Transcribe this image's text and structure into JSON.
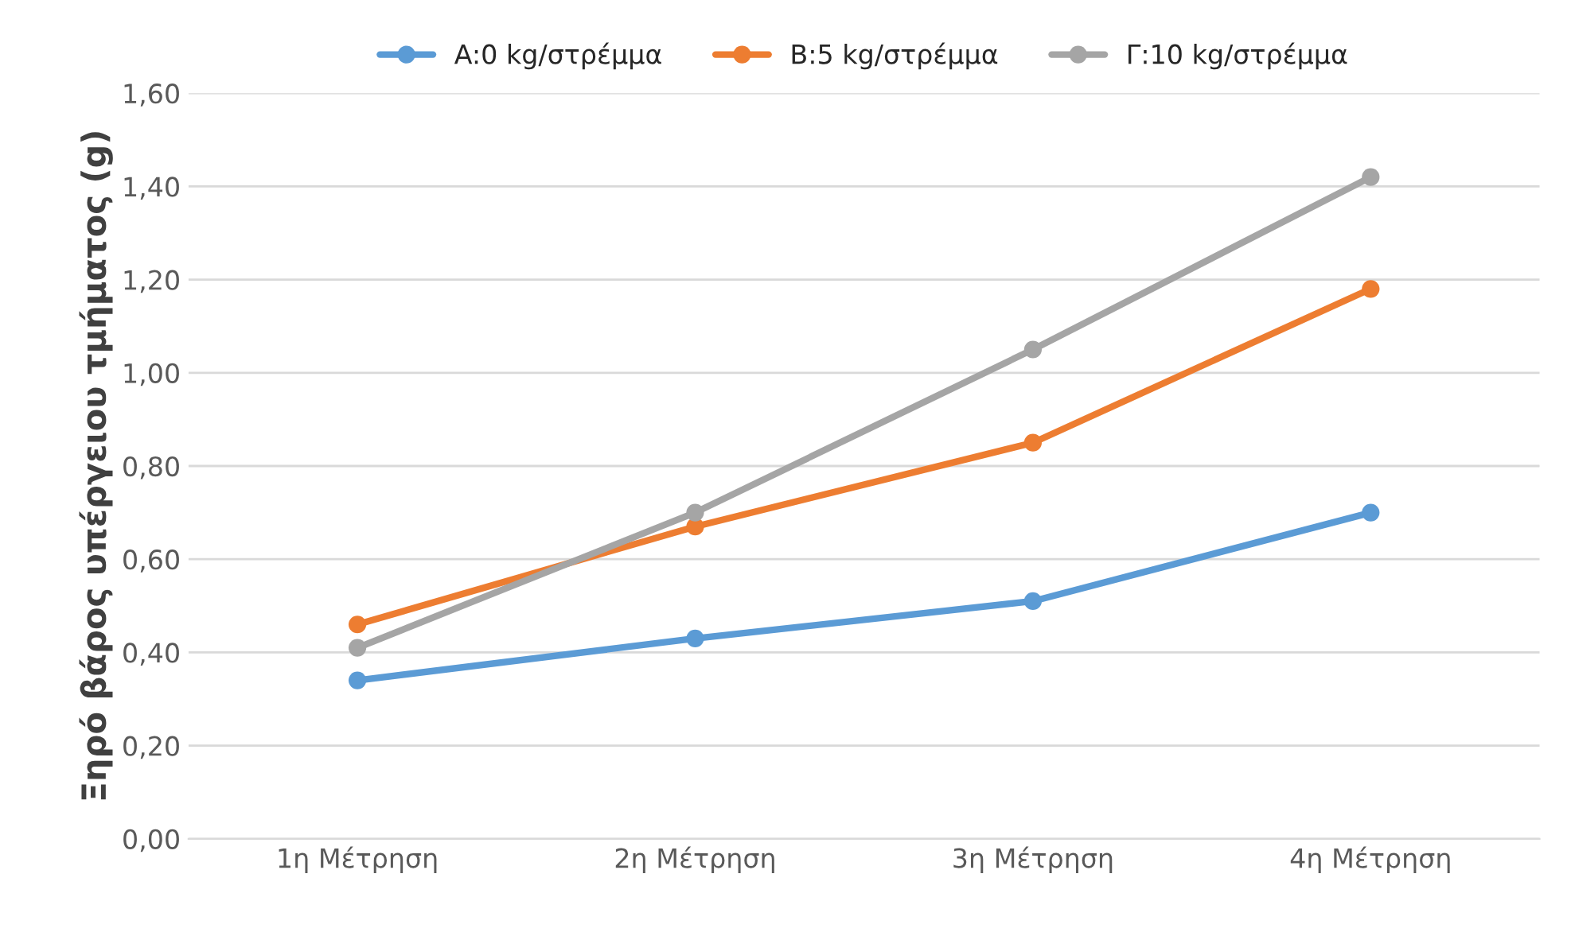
{
  "chart_data": {
    "type": "line",
    "ylabel": "Ξηρό βάρος υπέργειου τμήματος (g)",
    "categories": [
      "1η Μέτρηση",
      "2η Μέτρηση",
      "3η Μέτρηση",
      "4η Μέτρηση"
    ],
    "series": [
      {
        "name": "A:0 kg/στρέμμα",
        "color": "#5b9bd5",
        "values": [
          0.34,
          0.43,
          0.51,
          0.7
        ]
      },
      {
        "name": "B:5 kg/στρέμμα",
        "color": "#ed7d31",
        "values": [
          0.46,
          0.67,
          0.85,
          1.18
        ]
      },
      {
        "name": "Γ:10 kg/στρέμμα",
        "color": "#a5a5a5",
        "values": [
          0.41,
          0.7,
          1.05,
          1.42
        ]
      }
    ],
    "ylim": [
      0,
      1.6
    ],
    "yticks": [
      {
        "value": 0,
        "label": "0,00"
      },
      {
        "value": 0.2,
        "label": "0,20"
      },
      {
        "value": 0.4,
        "label": "0,40"
      },
      {
        "value": 0.6,
        "label": "0,60"
      },
      {
        "value": 0.8,
        "label": "0,80"
      },
      {
        "value": 1.0,
        "label": "1,00"
      },
      {
        "value": 1.2,
        "label": "1,20"
      },
      {
        "value": 1.4,
        "label": "1,40"
      },
      {
        "value": 1.6,
        "label": "1,60"
      }
    ],
    "grid": "y",
    "legend": "top",
    "marker": "circle",
    "line_style": "solid"
  }
}
